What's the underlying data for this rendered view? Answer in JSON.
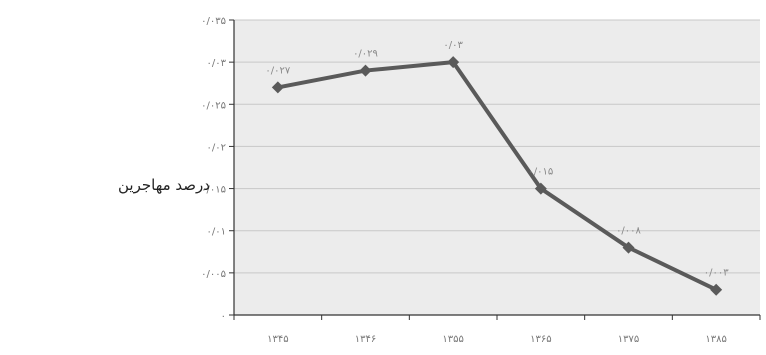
{
  "chart_data": {
    "type": "line",
    "ylabel": "درصد مهاجرین",
    "categories": [
      "۱۳۴۵",
      "۱۳۴۶",
      "۱۳۵۵",
      "۱۳۶۵",
      "۱۳۷۵",
      "۱۳۸۵"
    ],
    "x_tick_labels": [
      "۱۳۴۵",
      "۱۳۴۶",
      "۱۳۵۵",
      "۱۳۶۵",
      "۱۳۷۵",
      "۱۳۸۵"
    ],
    "series": [
      {
        "values": [
          0.027,
          0.029,
          0.03,
          0.015,
          0.008,
          0.003
        ]
      }
    ],
    "data_labels": [
      "۰/۰۲۷",
      "۰/۰۲۹",
      "۰/۰۳",
      "۰/۰۱۵",
      "۰/۰۰۸",
      "۰/۰۰۳"
    ],
    "y_ticks": [
      0,
      0.005,
      0.01,
      0.015,
      0.02,
      0.025,
      0.03,
      0.035
    ],
    "y_tick_labels": [
      "۰",
      "۰/۰۰۵",
      "۰/۰۱",
      "۰/۰۱۵",
      "۰/۰۲",
      "۰/۰۲۵",
      "۰/۰۳",
      "۰/۰۳۵"
    ],
    "ylim": [
      0,
      0.035
    ],
    "grid": true,
    "colors": {
      "line": "#5a5a5a",
      "marker": "#5a5a5a",
      "plot_bg": "#ececec",
      "grid": "#c8c8c8",
      "axis": "#333333"
    }
  }
}
